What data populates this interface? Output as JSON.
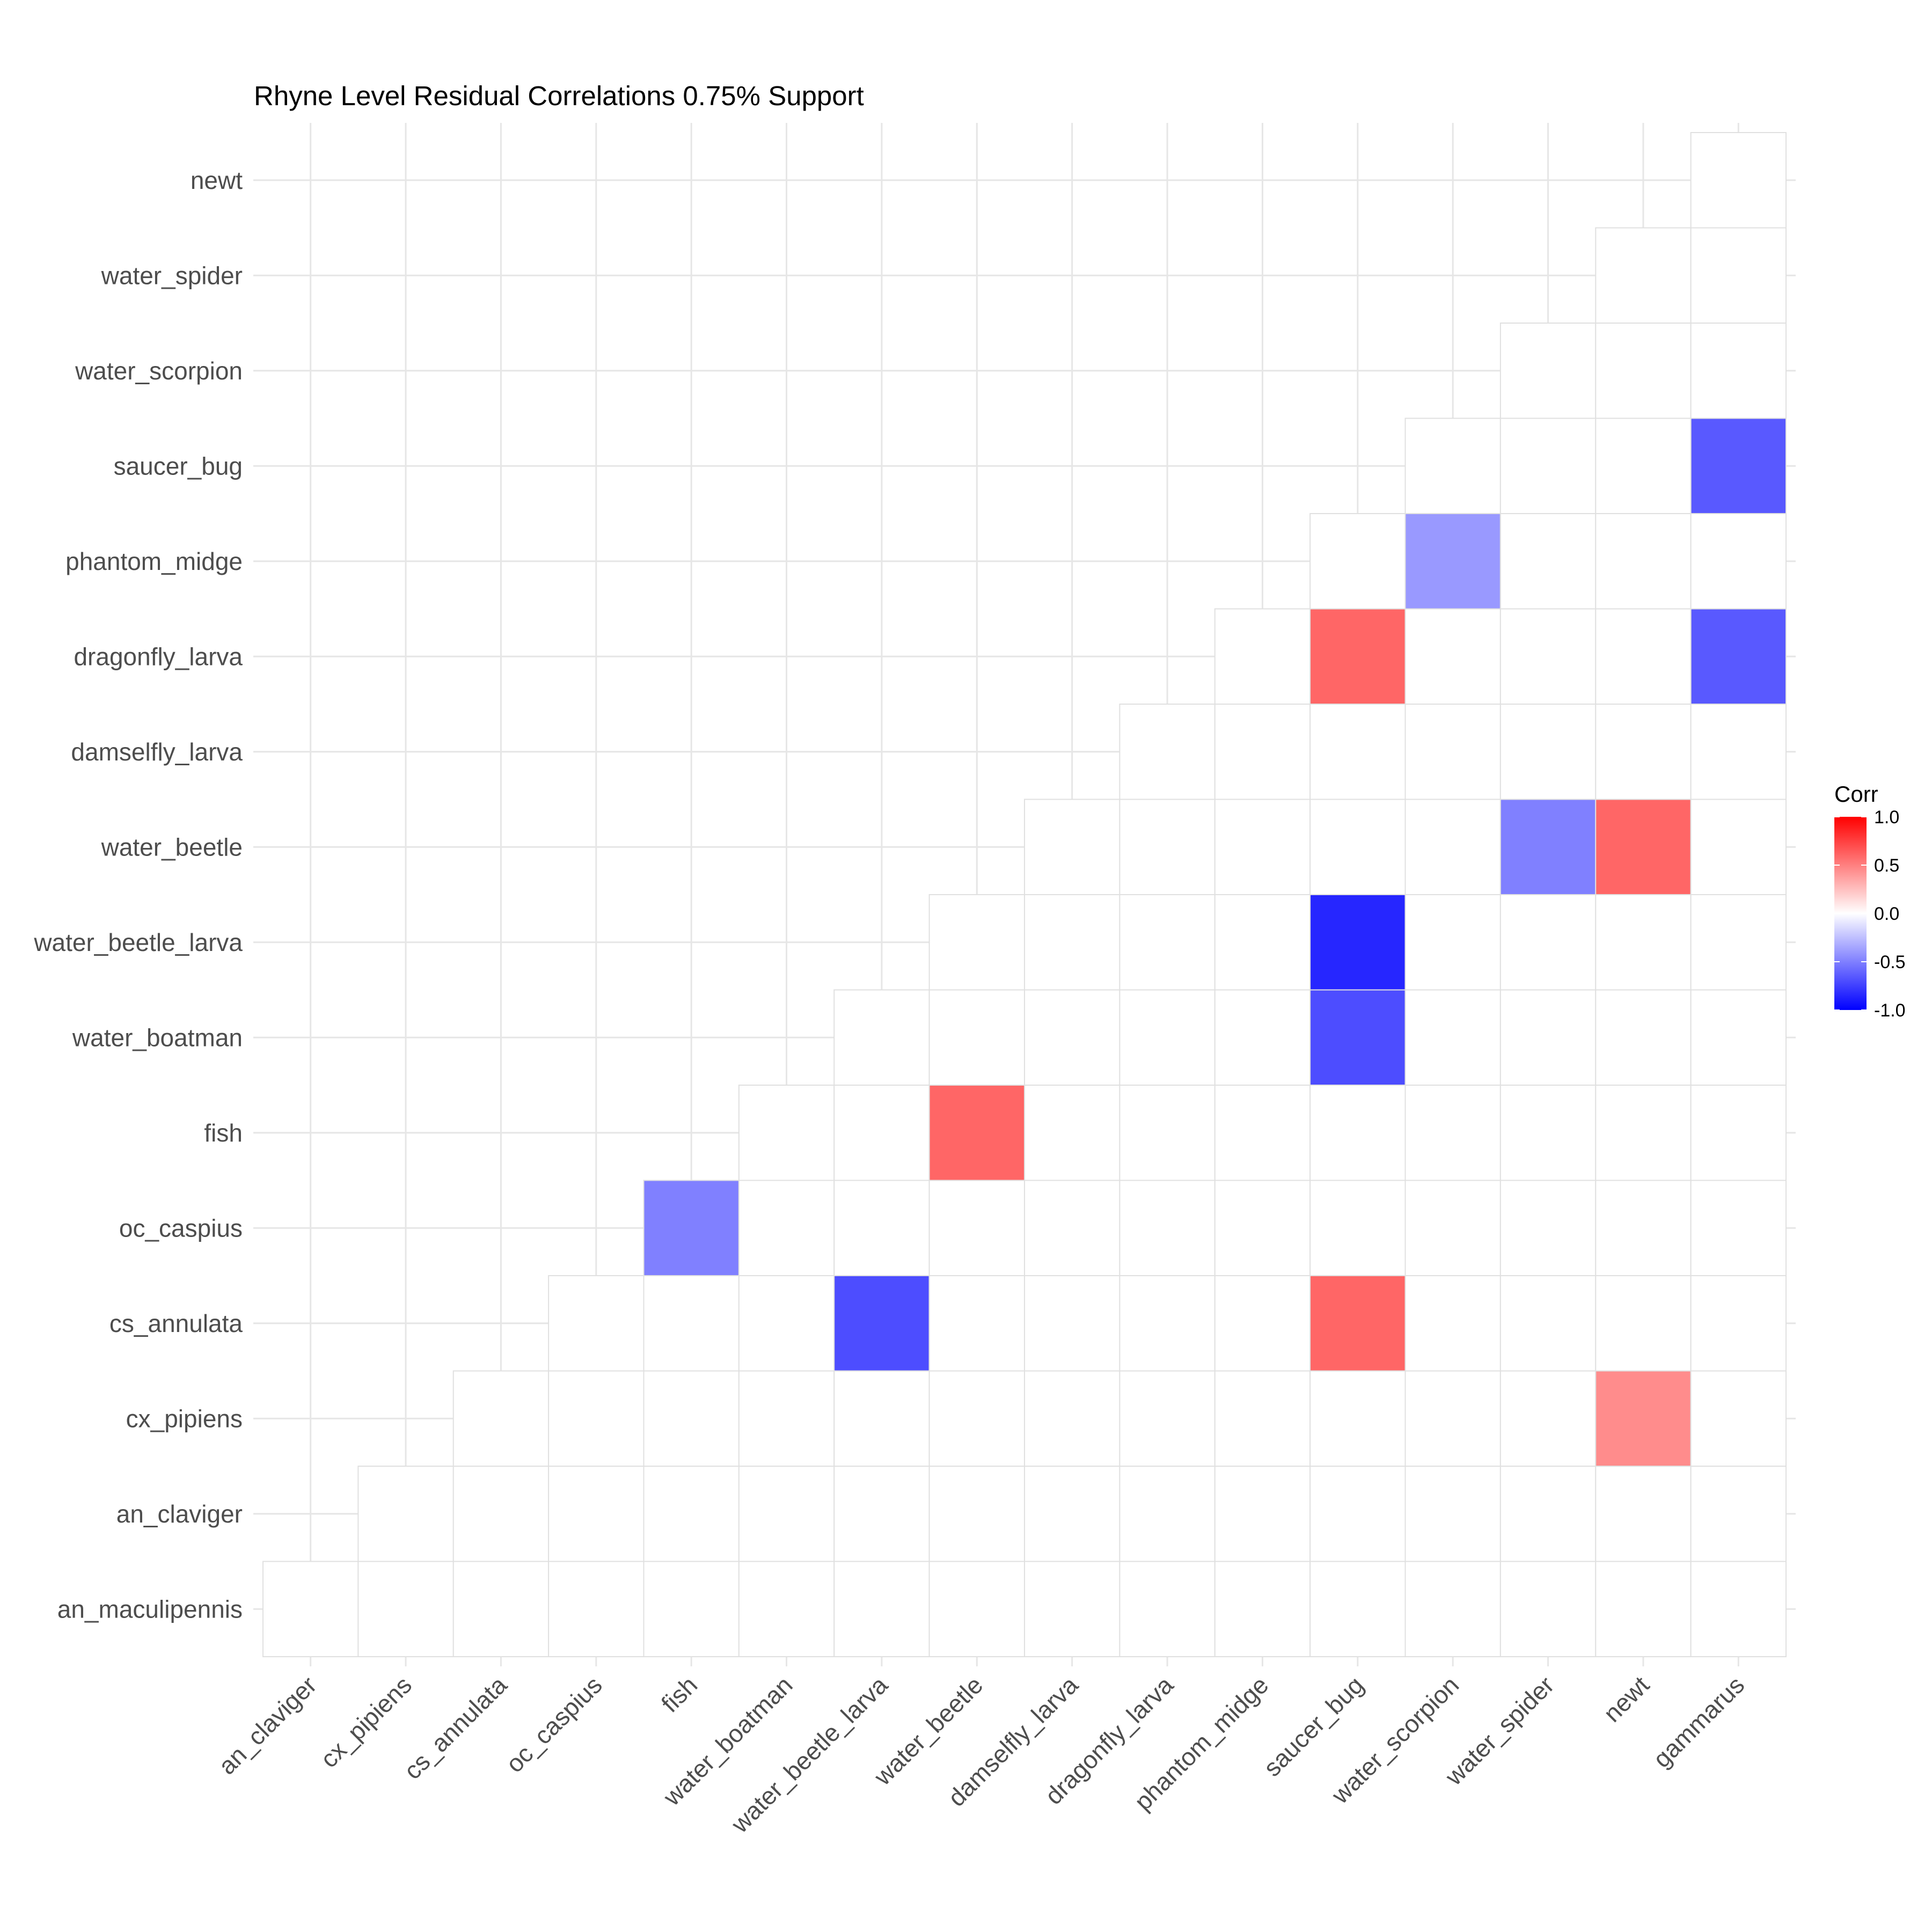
{
  "chart_data": {
    "type": "heatmap",
    "title": "Rhyne Level Residual Correlations 0.75% Support",
    "x_categories": [
      "an_claviger",
      "cx_pipiens",
      "cs_annulata",
      "oc_caspius",
      "fish",
      "water_boatman",
      "water_beetle_larva",
      "water_beetle",
      "damselfly_larva",
      "dragonfly_larva",
      "phantom_midge",
      "saucer_bug",
      "water_scorpion",
      "water_spider",
      "newt",
      "gammarus"
    ],
    "y_categories": [
      "an_maculipennis",
      "an_claviger",
      "cx_pipiens",
      "cs_annulata",
      "oc_caspius",
      "fish",
      "water_boatman",
      "water_beetle_larva",
      "water_beetle",
      "damselfly_larva",
      "dragonfly_larva",
      "phantom_midge",
      "saucer_bug",
      "water_scorpion",
      "water_spider",
      "newt"
    ],
    "legend": {
      "title": "Corr",
      "limits": [
        -1,
        1
      ],
      "ticks": [
        "1.0",
        "0.5",
        "0.0",
        "-0.5",
        "-1.0"
      ],
      "colors": {
        "low": "#0000ff",
        "mid": "#ffffff",
        "high": "#ff0000"
      },
      "position": "right"
    },
    "grid": true,
    "cells": [
      {
        "x": "fish",
        "y": "oc_caspius",
        "value": -0.5
      },
      {
        "x": "water_beetle_larva",
        "y": "cs_annulata",
        "value": -0.7
      },
      {
        "x": "water_beetle",
        "y": "fish",
        "value": 0.6
      },
      {
        "x": "saucer_bug",
        "y": "cs_annulata",
        "value": 0.6
      },
      {
        "x": "saucer_bug",
        "y": "water_boatman",
        "value": -0.7
      },
      {
        "x": "saucer_bug",
        "y": "water_beetle_larva",
        "value": -0.85
      },
      {
        "x": "saucer_bug",
        "y": "dragonfly_larva",
        "value": 0.6
      },
      {
        "x": "water_scorpion",
        "y": "phantom_midge",
        "value": -0.4
      },
      {
        "x": "water_spider",
        "y": "water_beetle",
        "value": -0.5
      },
      {
        "x": "newt",
        "y": "water_beetle",
        "value": 0.6
      },
      {
        "x": "newt",
        "y": "cx_pipiens",
        "value": 0.45
      },
      {
        "x": "gammarus",
        "y": "saucer_bug",
        "value": -0.65
      },
      {
        "x": "gammarus",
        "y": "dragonfly_larva",
        "value": -0.65
      }
    ]
  }
}
